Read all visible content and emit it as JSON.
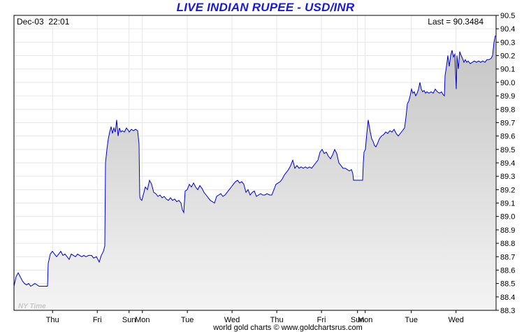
{
  "chart_data": {
    "type": "area",
    "title": "LIVE INDIAN RUPEE - USD/INR",
    "timestamp": "Dec-03  22:01",
    "last_label": "Last = 90.3484",
    "time_zone_label": "NY Time",
    "footer": "world gold charts © www.goldchartsrus.com",
    "ylim": [
      88.3,
      90.5
    ],
    "y_ticks": [
      "88.3",
      "88.4",
      "88.5",
      "88.6",
      "88.7",
      "88.8",
      "88.9",
      "89.0",
      "89.1",
      "89.2",
      "89.3",
      "89.4",
      "89.5",
      "89.6",
      "89.7",
      "89.8",
      "89.9",
      "90.0",
      "90.1",
      "90.2",
      "90.3",
      "90.4",
      "90.5"
    ],
    "x_labels": [
      {
        "label": "Thu",
        "t": 55.2
      },
      {
        "label": "Fri",
        "t": 119.2
      },
      {
        "label": "Sun",
        "t": 164.7
      },
      {
        "label": "Mon",
        "t": 183.8
      },
      {
        "label": "Tue",
        "t": 248.1
      },
      {
        "label": "Wed",
        "t": 312.1
      },
      {
        "label": "Thu",
        "t": 376.1
      },
      {
        "label": "Fri",
        "t": 440.1
      },
      {
        "label": "Sun",
        "t": 491.7
      },
      {
        "label": "Mon",
        "t": 502.7
      },
      {
        "label": "Tue",
        "t": 568.7
      },
      {
        "label": "Wed",
        "t": 632.7
      }
    ],
    "x_range": [
      0,
      690
    ],
    "grid": true,
    "line_color": "#0000cc",
    "fill_top_color": "#c4c4c4",
    "fill_bottom_color": "#f4f4f4",
    "series": [
      {
        "points": [
          [
            0,
            88.48
          ],
          [
            3,
            88.55
          ],
          [
            6,
            88.58
          ],
          [
            9,
            88.55
          ],
          [
            12,
            88.52
          ],
          [
            15,
            88.5
          ],
          [
            18,
            88.49
          ],
          [
            21,
            88.5
          ],
          [
            24,
            88.48
          ],
          [
            27,
            88.49
          ],
          [
            30,
            88.5
          ],
          [
            33,
            88.49
          ],
          [
            36,
            88.48
          ],
          [
            40,
            88.48
          ],
          [
            44,
            88.48
          ],
          [
            48,
            88.48
          ],
          [
            49,
            88.65
          ],
          [
            52,
            88.72
          ],
          [
            55,
            88.74
          ],
          [
            58,
            88.72
          ],
          [
            61,
            88.7
          ],
          [
            64,
            88.72
          ],
          [
            67,
            88.74
          ],
          [
            70,
            88.71
          ],
          [
            73,
            88.72
          ],
          [
            76,
            88.7
          ],
          [
            79,
            88.68
          ],
          [
            82,
            88.72
          ],
          [
            85,
            88.71
          ],
          [
            88,
            88.7
          ],
          [
            91,
            88.72
          ],
          [
            94,
            88.71
          ],
          [
            97,
            88.7
          ],
          [
            100,
            88.71
          ],
          [
            103,
            88.7
          ],
          [
            107,
            88.71
          ],
          [
            111,
            88.71
          ],
          [
            114,
            88.69
          ],
          [
            118,
            88.7
          ],
          [
            122,
            88.66
          ],
          [
            125,
            88.71
          ],
          [
            128,
            88.74
          ],
          [
            130,
            88.78
          ],
          [
            131,
            89.4
          ],
          [
            133,
            89.5
          ],
          [
            135,
            89.58
          ],
          [
            137,
            89.63
          ],
          [
            139,
            89.67
          ],
          [
            141,
            89.62
          ],
          [
            143,
            89.66
          ],
          [
            145,
            89.63
          ],
          [
            147,
            89.72
          ],
          [
            149,
            89.6
          ],
          [
            151,
            89.66
          ],
          [
            153,
            89.63
          ],
          [
            155,
            89.64
          ],
          [
            158,
            89.63
          ],
          [
            161,
            89.66
          ],
          [
            164,
            89.64
          ],
          [
            165,
            89.63
          ],
          [
            168,
            89.65
          ],
          [
            171,
            89.64
          ],
          [
            174,
            89.65
          ],
          [
            177,
            89.64
          ],
          [
            179,
            89.54
          ],
          [
            180,
            89.15
          ],
          [
            181,
            89.13
          ],
          [
            183,
            89.12
          ],
          [
            186,
            89.18
          ],
          [
            188,
            89.22
          ],
          [
            191,
            89.2
          ],
          [
            194,
            89.27
          ],
          [
            197,
            89.24
          ],
          [
            200,
            89.18
          ],
          [
            203,
            89.17
          ],
          [
            206,
            89.15
          ],
          [
            209,
            89.16
          ],
          [
            212,
            89.14
          ],
          [
            215,
            89.15
          ],
          [
            218,
            89.13
          ],
          [
            221,
            89.12
          ],
          [
            224,
            89.14
          ],
          [
            227,
            89.12
          ],
          [
            230,
            89.13
          ],
          [
            233,
            89.11
          ],
          [
            236,
            89.12
          ],
          [
            239,
            89.1
          ],
          [
            241,
            89.05
          ],
          [
            243,
            89.03
          ],
          [
            245,
            89.19
          ],
          [
            248,
            89.2
          ],
          [
            251,
            89.24
          ],
          [
            254,
            89.22
          ],
          [
            257,
            89.25
          ],
          [
            260,
            89.22
          ],
          [
            263,
            89.2
          ],
          [
            266,
            89.23
          ],
          [
            269,
            89.21
          ],
          [
            272,
            89.18
          ],
          [
            275,
            89.16
          ],
          [
            278,
            89.14
          ],
          [
            281,
            89.12
          ],
          [
            284,
            89.11
          ],
          [
            287,
            89.1
          ],
          [
            290,
            89.15
          ],
          [
            293,
            89.16
          ],
          [
            296,
            89.17
          ],
          [
            299,
            89.15
          ],
          [
            302,
            89.16
          ],
          [
            305,
            89.18
          ],
          [
            308,
            89.2
          ],
          [
            311,
            89.22
          ],
          [
            314,
            89.24
          ],
          [
            317,
            89.26
          ],
          [
            320,
            89.27
          ],
          [
            323,
            89.25
          ],
          [
            326,
            89.26
          ],
          [
            329,
            89.24
          ],
          [
            332,
            89.18
          ],
          [
            335,
            89.2
          ],
          [
            338,
            89.16
          ],
          [
            341,
            89.18
          ],
          [
            344,
            89.19
          ],
          [
            347,
            89.15
          ],
          [
            350,
            89.16
          ],
          [
            353,
            89.17
          ],
          [
            356,
            89.16
          ],
          [
            359,
            89.16
          ],
          [
            362,
            89.17
          ],
          [
            366,
            89.16
          ],
          [
            369,
            89.16
          ],
          [
            372,
            89.2
          ],
          [
            375,
            89.24
          ],
          [
            378,
            89.25
          ],
          [
            381,
            89.26
          ],
          [
            384,
            89.28
          ],
          [
            387,
            89.31
          ],
          [
            390,
            89.33
          ],
          [
            393,
            89.35
          ],
          [
            396,
            89.38
          ],
          [
            399,
            89.42
          ],
          [
            402,
            89.36
          ],
          [
            405,
            89.38
          ],
          [
            408,
            89.36
          ],
          [
            411,
            89.37
          ],
          [
            414,
            89.36
          ],
          [
            417,
            89.37
          ],
          [
            420,
            89.36
          ],
          [
            423,
            89.37
          ],
          [
            426,
            89.36
          ],
          [
            429,
            89.38
          ],
          [
            432,
            89.4
          ],
          [
            435,
            89.42
          ],
          [
            438,
            89.48
          ],
          [
            441,
            89.5
          ],
          [
            444,
            89.47
          ],
          [
            447,
            89.48
          ],
          [
            450,
            89.45
          ],
          [
            453,
            89.43
          ],
          [
            456,
            89.46
          ],
          [
            459,
            89.5
          ],
          [
            462,
            89.47
          ],
          [
            465,
            89.4
          ],
          [
            468,
            89.38
          ],
          [
            471,
            89.36
          ],
          [
            474,
            89.36
          ],
          [
            477,
            89.35
          ],
          [
            480,
            89.34
          ],
          [
            483,
            89.35
          ],
          [
            485,
            89.32
          ],
          [
            486,
            89.27
          ],
          [
            490,
            89.27
          ],
          [
            495,
            89.27
          ],
          [
            499,
            89.27
          ],
          [
            500,
            89.4
          ],
          [
            501,
            89.48
          ],
          [
            503,
            89.5
          ],
          [
            505,
            89.62
          ],
          [
            507,
            89.72
          ],
          [
            510,
            89.63
          ],
          [
            512,
            89.58
          ],
          [
            514,
            89.56
          ],
          [
            516,
            89.53
          ],
          [
            518,
            89.52
          ],
          [
            520,
            89.54
          ],
          [
            523,
            89.58
          ],
          [
            526,
            89.6
          ],
          [
            529,
            89.61
          ],
          [
            532,
            89.63
          ],
          [
            535,
            89.62
          ],
          [
            538,
            89.64
          ],
          [
            541,
            89.63
          ],
          [
            544,
            89.65
          ],
          [
            547,
            89.62
          ],
          [
            550,
            89.6
          ],
          [
            553,
            89.62
          ],
          [
            556,
            89.64
          ],
          [
            559,
            89.66
          ],
          [
            561,
            89.74
          ],
          [
            563,
            89.84
          ],
          [
            565,
            89.86
          ],
          [
            567,
            89.9
          ],
          [
            569,
            89.95
          ],
          [
            571,
            89.92
          ],
          [
            573,
            89.93
          ],
          [
            575,
            89.9
          ],
          [
            577,
            89.92
          ],
          [
            579,
            89.95
          ],
          [
            581,
            90.0
          ],
          [
            583,
            89.95
          ],
          [
            585,
            89.93
          ],
          [
            587,
            89.94
          ],
          [
            589,
            89.92
          ],
          [
            591,
            89.93
          ],
          [
            594,
            89.92
          ],
          [
            597,
            89.93
          ],
          [
            600,
            89.92
          ],
          [
            603,
            89.95
          ],
          [
            606,
            89.93
          ],
          [
            609,
            89.92
          ],
          [
            612,
            89.93
          ],
          [
            614,
            89.91
          ],
          [
            616,
            89.9
          ],
          [
            617,
            90.05
          ],
          [
            619,
            90.12
          ],
          [
            621,
            90.2
          ],
          [
            623,
            90.12
          ],
          [
            625,
            90.2
          ],
          [
            627,
            90.24
          ],
          [
            629,
            90.19
          ],
          [
            631,
            90.21
          ],
          [
            633,
            89.95
          ],
          [
            634,
            90.2
          ],
          [
            636,
            90.1
          ],
          [
            638,
            90.23
          ],
          [
            640,
            90.2
          ],
          [
            642,
            90.18
          ],
          [
            644,
            90.15
          ],
          [
            646,
            90.17
          ],
          [
            648,
            90.15
          ],
          [
            650,
            90.16
          ],
          [
            653,
            90.14
          ],
          [
            656,
            90.15
          ],
          [
            659,
            90.16
          ],
          [
            662,
            90.15
          ],
          [
            665,
            90.16
          ],
          [
            668,
            90.15
          ],
          [
            671,
            90.16
          ],
          [
            674,
            90.15
          ],
          [
            677,
            90.17
          ],
          [
            680,
            90.17
          ],
          [
            683,
            90.18
          ],
          [
            685,
            90.2
          ],
          [
            687,
            90.3
          ],
          [
            689,
            90.35
          ]
        ]
      }
    ]
  }
}
